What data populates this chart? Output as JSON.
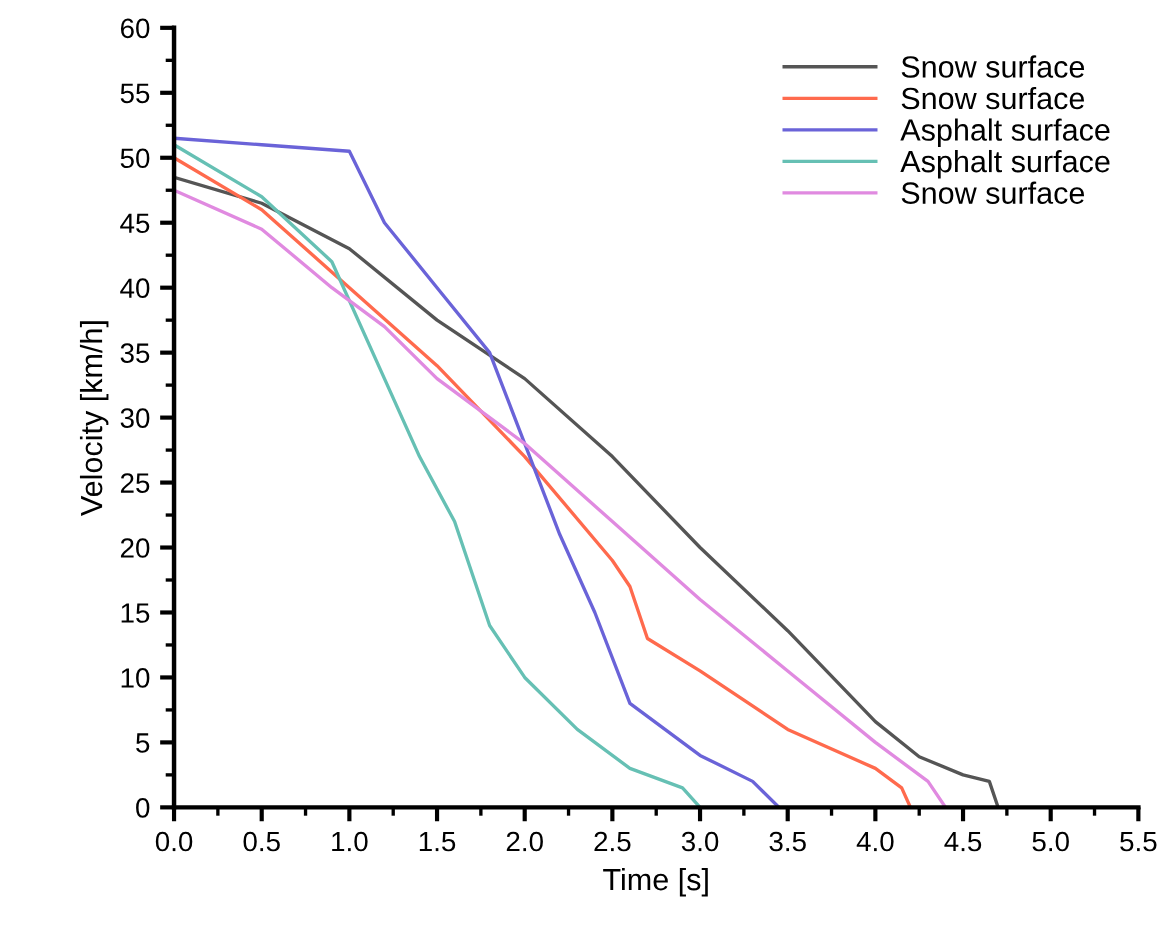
{
  "chart_data": {
    "type": "line",
    "xlabel": "Time [s]",
    "ylabel": "Velocity [km/h]",
    "xlim": [
      0,
      5.5
    ],
    "ylim": [
      0,
      60
    ],
    "xticks": [
      {
        "value": 0,
        "label": "0.0"
      },
      {
        "value": 0.25,
        "label": null
      },
      0.5,
      {
        "value": 0.75,
        "label": null
      },
      {
        "value": 1,
        "label": "1.0"
      },
      {
        "value": 1.25,
        "label": null
      },
      1.5,
      {
        "value": 1.75,
        "label": null
      },
      {
        "value": 2,
        "label": "2.0"
      },
      {
        "value": 2.25,
        "label": null
      },
      2.5,
      {
        "value": 2.75,
        "label": null
      },
      {
        "value": 3,
        "label": "3.0"
      },
      {
        "value": 3.25,
        "label": null
      },
      3.5,
      {
        "value": 3.75,
        "label": null
      },
      {
        "value": 4,
        "label": "4.0"
      },
      {
        "value": 4.25,
        "label": null
      },
      4.5,
      {
        "value": 4.75,
        "label": null
      },
      {
        "value": 5,
        "label": "5.0"
      },
      {
        "value": 5.25,
        "label": null
      },
      5.5
    ],
    "yticks": [
      0,
      {
        "value": 2.5,
        "label": null
      },
      5,
      {
        "value": 7.5,
        "label": null
      },
      10,
      {
        "value": 12.5,
        "label": null
      },
      15,
      {
        "value": 17.5,
        "label": null
      },
      20,
      {
        "value": 22.5,
        "label": null
      },
      25,
      {
        "value": 27.5,
        "label": null
      },
      30,
      {
        "value": 32.5,
        "label": null
      },
      35,
      {
        "value": 37.5,
        "label": null
      },
      40,
      {
        "value": 42.5,
        "label": null
      },
      45,
      {
        "value": 47.5,
        "label": null
      },
      50,
      {
        "value": 52.5,
        "label": null
      },
      55,
      {
        "value": 57.5,
        "label": null
      },
      60
    ],
    "grid": false,
    "legend": "top right",
    "series": [
      {
        "name": "Snow surface",
        "color": "#555555",
        "x": [
          0,
          0.5,
          1.0,
          1.5,
          2.0,
          2.5,
          3.0,
          3.5,
          4.0,
          4.25,
          4.5,
          4.65,
          4.7
        ],
        "values": [
          48.5,
          46.5,
          43,
          37.5,
          33,
          27,
          20,
          13.6,
          6.6,
          3.9,
          2.5,
          2,
          0
        ]
      },
      {
        "name": "Snow surface",
        "color": "#ff6a4d",
        "x": [
          0,
          0.5,
          1.0,
          1.5,
          2.0,
          2.5,
          2.6,
          2.7,
          3.0,
          3.5,
          4.0,
          4.15,
          4.2
        ],
        "values": [
          50,
          46,
          40,
          34,
          27,
          19,
          17,
          13,
          10.5,
          6,
          3,
          1.5,
          0
        ]
      },
      {
        "name": "Asphalt surface",
        "color": "#6a63d8",
        "x": [
          0,
          0.5,
          1.0,
          1.2,
          1.5,
          1.8,
          2.0,
          2.2,
          2.4,
          2.6,
          3.0,
          3.3,
          3.45
        ],
        "values": [
          51.5,
          51,
          50.5,
          45,
          40,
          35,
          28,
          21,
          15,
          8,
          4,
          2,
          0
        ]
      },
      {
        "name": "Asphalt surface",
        "color": "#66c0b4",
        "x": [
          0,
          0.5,
          0.9,
          1.2,
          1.4,
          1.6,
          1.8,
          2.0,
          2.3,
          2.6,
          2.9,
          3.0
        ],
        "values": [
          51,
          47,
          42,
          33,
          27,
          22,
          14,
          10,
          6,
          3,
          1.5,
          0
        ]
      },
      {
        "name": "Snow surface",
        "color": "#e08ae0",
        "x": [
          0,
          0.5,
          0.9,
          1.2,
          1.5,
          2.0,
          2.5,
          3.0,
          3.5,
          4.0,
          4.2,
          4.3,
          4.4
        ],
        "values": [
          47.5,
          44.5,
          40,
          37,
          33,
          28,
          22,
          16,
          10.5,
          5,
          3,
          2,
          0
        ]
      }
    ]
  }
}
